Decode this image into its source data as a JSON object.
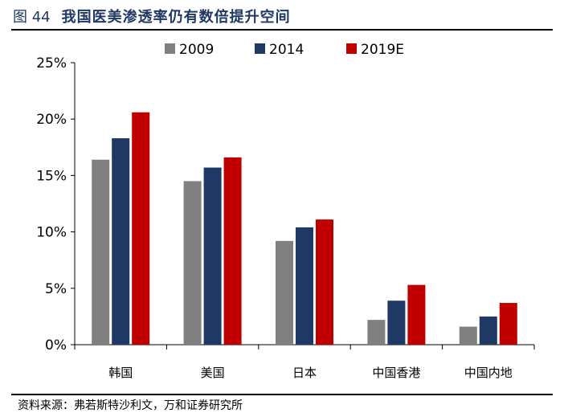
{
  "figure": {
    "label": "图 44",
    "title": "我国医美渗透率仍有数倍提升空间"
  },
  "source": "资料来源：弗若斯特沙利文，万和证券研究所",
  "chart_data": {
    "type": "bar",
    "categories": [
      "韩国",
      "美国",
      "日本",
      "中国香港",
      "中国内地"
    ],
    "series": [
      {
        "name": "2009",
        "color": "#808080",
        "values": [
          16.4,
          14.5,
          9.2,
          2.2,
          1.6
        ]
      },
      {
        "name": "2014",
        "color": "#1f3864",
        "values": [
          18.3,
          15.7,
          10.4,
          3.9,
          2.5
        ]
      },
      {
        "name": "2019E",
        "color": "#c00000",
        "values": [
          20.6,
          16.6,
          11.1,
          5.3,
          3.7
        ]
      }
    ],
    "ylim": [
      0,
      25
    ],
    "yticks": [
      0,
      5,
      10,
      15,
      20,
      25
    ],
    "ytick_labels": [
      "0%",
      "5%",
      "10%",
      "15%",
      "20%",
      "25%"
    ],
    "legend_position": "top",
    "grid": false
  }
}
